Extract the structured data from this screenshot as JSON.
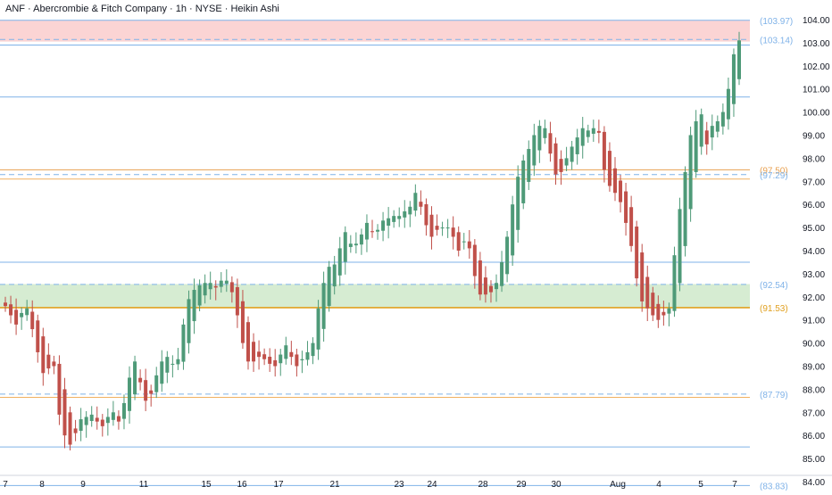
{
  "header": {
    "title": "ANF · Abercrombie & Fitch Company · 1h · NYSE · Heikin Ashi"
  },
  "chart_data": {
    "type": "candlestick",
    "title": "ANF · Abercrombie & Fitch Company · 1h · NYSE · Heikin Ashi",
    "ylim": [
      83.6,
      104.6
    ],
    "y_ticks": [
      "84.00",
      "85.00",
      "86.00",
      "87.00",
      "88.00",
      "89.00",
      "90.00",
      "91.00",
      "92.00",
      "93.00",
      "94.00",
      "95.00",
      "96.00",
      "97.00",
      "98.00",
      "99.00",
      "100.00",
      "101.00",
      "102.00",
      "103.00",
      "104.00"
    ],
    "x_ticks": [
      "7",
      "8",
      "9",
      "11",
      "15",
      "16",
      "17",
      "21",
      "23",
      "24",
      "28",
      "29",
      "30",
      "Aug",
      "4",
      "5",
      "7"
    ],
    "colors": {
      "up": "#4e9a78",
      "down": "#c0504a",
      "blue_line": "#7fb2e8",
      "orange_line": "#f0a040",
      "resistance_zone": "#fbd4d4",
      "support_zone": "#d6ecd2"
    },
    "zones": [
      {
        "kind": "resistance",
        "from": 103.05,
        "to": 103.97
      },
      {
        "kind": "support",
        "from": 91.55,
        "to": 92.55
      }
    ],
    "levels": [
      {
        "value": 103.97,
        "label": "(103.97)",
        "color": "#7fb2e8",
        "dashed": false
      },
      {
        "value": 103.14,
        "label": "(103.14)",
        "color": "#7fb2e8",
        "dashed": true
      },
      {
        "value": 102.9,
        "label": "",
        "color": "#7fb2e8",
        "dashed": false
      },
      {
        "value": 100.65,
        "label": "",
        "color": "#7fb2e8",
        "dashed": false
      },
      {
        "value": 97.5,
        "label": "(97.50)",
        "color": "#e8a050",
        "dashed": false
      },
      {
        "value": 97.29,
        "label": "(97.29)",
        "color": "#7fb2e8",
        "dashed": true
      },
      {
        "value": 97.1,
        "label": "",
        "color": "#f0b060",
        "dashed": false
      },
      {
        "value": 93.5,
        "label": "",
        "color": "#7fb2e8",
        "dashed": false
      },
      {
        "value": 92.54,
        "label": "(92.54)",
        "color": "#7fb2e8",
        "dashed": true
      },
      {
        "value": 91.53,
        "label": "(91.53)",
        "color": "#e0a020",
        "dashed": false
      },
      {
        "value": 87.79,
        "label": "(87.79)",
        "color": "#7fb2e8",
        "dashed": true
      },
      {
        "value": 87.65,
        "label": "",
        "color": "#f0b060",
        "dashed": false
      },
      {
        "value": 85.5,
        "label": "",
        "color": "#7fb2e8",
        "dashed": false
      },
      {
        "value": 83.83,
        "label": "(83.83)",
        "color": "#7fb2e8",
        "dashed": false
      }
    ],
    "close_series": [
      91.6,
      91.2,
      90.8,
      91.3,
      91.5,
      90.6,
      89.6,
      88.7,
      88.9,
      89.0,
      86.9,
      86.0,
      85.6,
      86.1,
      86.7,
      86.8,
      86.9,
      86.6,
      86.4,
      86.8,
      87.0,
      86.6,
      87.4,
      88.5,
      89.2,
      88.3,
      87.5,
      87.8,
      88.6,
      89.2,
      89.4,
      89.1,
      89.3,
      90.8,
      91.9,
      92.3,
      92.5,
      92.6,
      92.6,
      92.4,
      92.7,
      92.7,
      92.2,
      91.2,
      90.0,
      89.2,
      89.2,
      89.4,
      89.3,
      89.1,
      89.0,
      89.5,
      89.9,
      89.4,
      89.0,
      89.3,
      89.6,
      90.0,
      91.5,
      92.6,
      93.3,
      93.4,
      94.1,
      94.8,
      94.3,
      94.3,
      94.7,
      95.2,
      94.8,
      94.9,
      95.3,
      95.4,
      95.5,
      95.5,
      95.7,
      95.9,
      96.5,
      95.9,
      95.1,
      94.6,
      94.9,
      95.0,
      95.0,
      94.6,
      94.0,
      94.4,
      94.1,
      92.9,
      92.1,
      92.1,
      92.2,
      92.6,
      93.5,
      94.6,
      96.0,
      97.2,
      97.9,
      98.4,
      99.0,
      99.4,
      99.3,
      98.2,
      97.3,
      97.4,
      98.0,
      98.5,
      98.9,
      99.3,
      99.2,
      99.3,
      99.1,
      97.5,
      96.8,
      96.5,
      96.1,
      95.2,
      94.2,
      92.8,
      91.8,
      91.5,
      91.2,
      91.0,
      91.2,
      91.5,
      93.8,
      95.8,
      97.4,
      99.0,
      99.6,
      99.9,
      98.6,
      99.4,
      99.6,
      100.0,
      101.0,
      102.5,
      103.1
    ]
  }
}
